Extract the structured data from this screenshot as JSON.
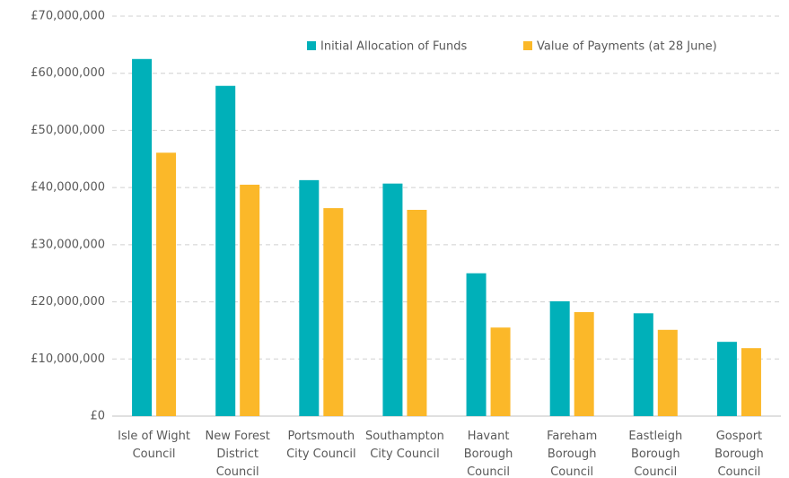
{
  "chart_data": {
    "type": "bar",
    "categories": [
      "Isle of Wight\nCouncil",
      "New Forest\nDistrict\nCouncil",
      "Portsmouth\nCity Council",
      "Southampton\nCity Council",
      "Havant\nBorough\nCouncil",
      "Fareham\nBorough\nCouncil",
      "Eastleigh\nBorough\nCouncil",
      "Gosport\nBorough\nCouncil"
    ],
    "series": [
      {
        "name": "Initial Allocation of Funds",
        "color": "#00b0b9",
        "values": [
          62500000,
          57800000,
          41300000,
          40700000,
          25000000,
          20100000,
          18000000,
          13000000
        ]
      },
      {
        "name": "Value of Payments (at 28 June)",
        "color": "#fbb829",
        "values": [
          46100000,
          40500000,
          36400000,
          36100000,
          15500000,
          18200000,
          15100000,
          11900000
        ]
      }
    ],
    "ylim": [
      0,
      70000000
    ],
    "yticks": [
      {
        "value": 0,
        "label": "£0"
      },
      {
        "value": 10000000,
        "label": "£10,000,000"
      },
      {
        "value": 20000000,
        "label": "£20,000,000"
      },
      {
        "value": 30000000,
        "label": "£30,000,000"
      },
      {
        "value": 40000000,
        "label": "£40,000,000"
      },
      {
        "value": 50000000,
        "label": "£50,000,000"
      },
      {
        "value": 60000000,
        "label": "£60,000,000"
      },
      {
        "value": 70000000,
        "label": "£70,000,000"
      }
    ],
    "grid": true,
    "legend": "top"
  }
}
